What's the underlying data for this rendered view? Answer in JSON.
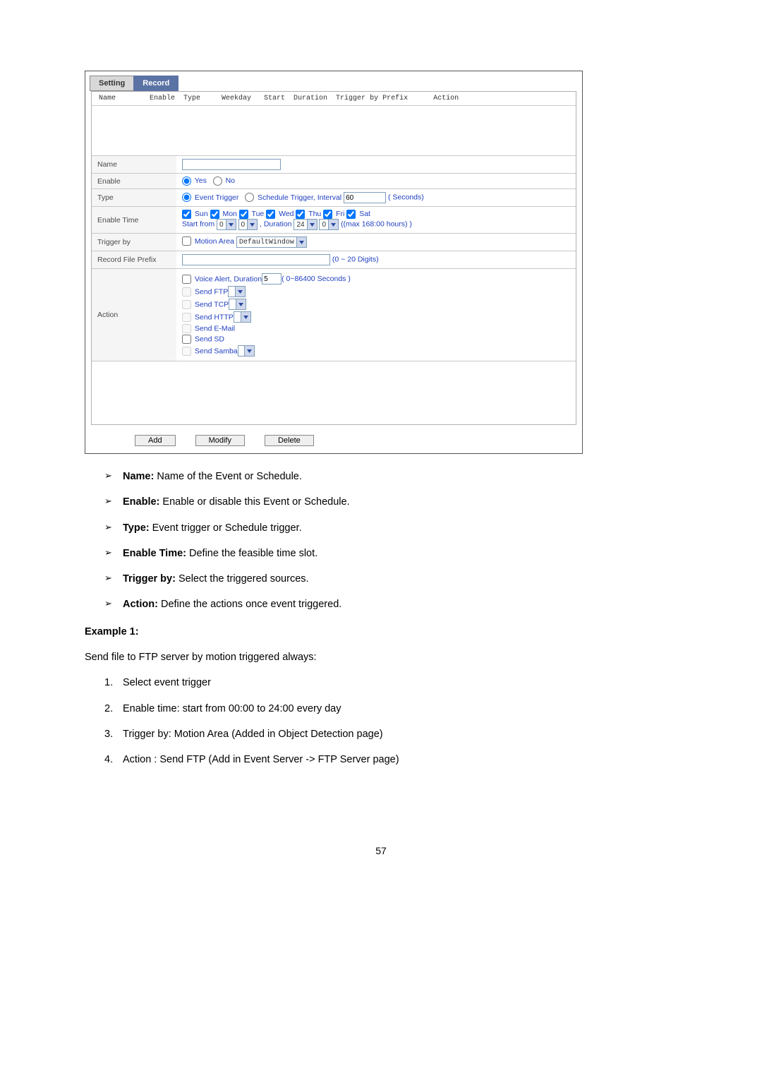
{
  "tabs": {
    "setting": "Setting",
    "record": "Record"
  },
  "headers": "Name        Enable  Type     Weekday   Start  Duration  Trigger by Prefix      Action",
  "form": {
    "name": {
      "label": "Name",
      "value": ""
    },
    "enable": {
      "label": "Enable",
      "yes": "Yes",
      "no": "No"
    },
    "type": {
      "label": "Type",
      "event": "Event Trigger",
      "schedule": "Schedule Trigger, Interval",
      "interval": "60",
      "seconds": "( Seconds)"
    },
    "enableTime": {
      "label": "Enable Time",
      "days": [
        "Sun",
        "Mon",
        "Tue",
        "Wed",
        "Thu",
        "Fri",
        "Sat"
      ],
      "startFrom": "Start from",
      "h1": "0",
      "m1": "0",
      "durationLbl": ", Duration",
      "h2": "24",
      "m2": "0",
      "max": "((max 168:00 hours) )"
    },
    "trigger": {
      "label": "Trigger by",
      "motion": "Motion Area",
      "win": "DefaultWindow"
    },
    "prefix": {
      "label": "Record File Prefix",
      "value": "",
      "hint": "(0 ~ 20 Digits)"
    },
    "action": {
      "label": "Action",
      "voice": "Voice Alert, Duration",
      "voiceVal": "5",
      "voiceHint": "( 0~86400 Seconds )",
      "ftp": "Send FTP",
      "tcp": "Send TCP",
      "http": "Send HTTP",
      "email": "Send E-Mail",
      "sd": "Send SD",
      "samba": "Send Samba"
    }
  },
  "buttons": {
    "add": "Add",
    "modify": "Modify",
    "delete": "Delete"
  },
  "bullets": [
    {
      "b": "Name:",
      "t": " Name of the Event or Schedule."
    },
    {
      "b": "Enable:",
      "t": " Enable or disable this Event or Schedule."
    },
    {
      "b": "Type:",
      "t": " Event trigger or Schedule trigger."
    },
    {
      "b": "Enable Time:",
      "t": " Define the feasible time slot."
    },
    {
      "b": "Trigger by:",
      "t": " Select the triggered sources."
    },
    {
      "b": "Action:",
      "t": " Define the actions once event triggered."
    }
  ],
  "example": {
    "title": "Example 1:",
    "intro": "Send file to FTP server by motion triggered always:",
    "steps": [
      "Select event trigger",
      "Enable time: start from 00:00 to 24:00 every day",
      "Trigger by: Motion Area (Added in Object Detection page)",
      "Action : Send FTP (Add in Event Server -> FTP Server page)"
    ]
  },
  "pageNum": "57"
}
